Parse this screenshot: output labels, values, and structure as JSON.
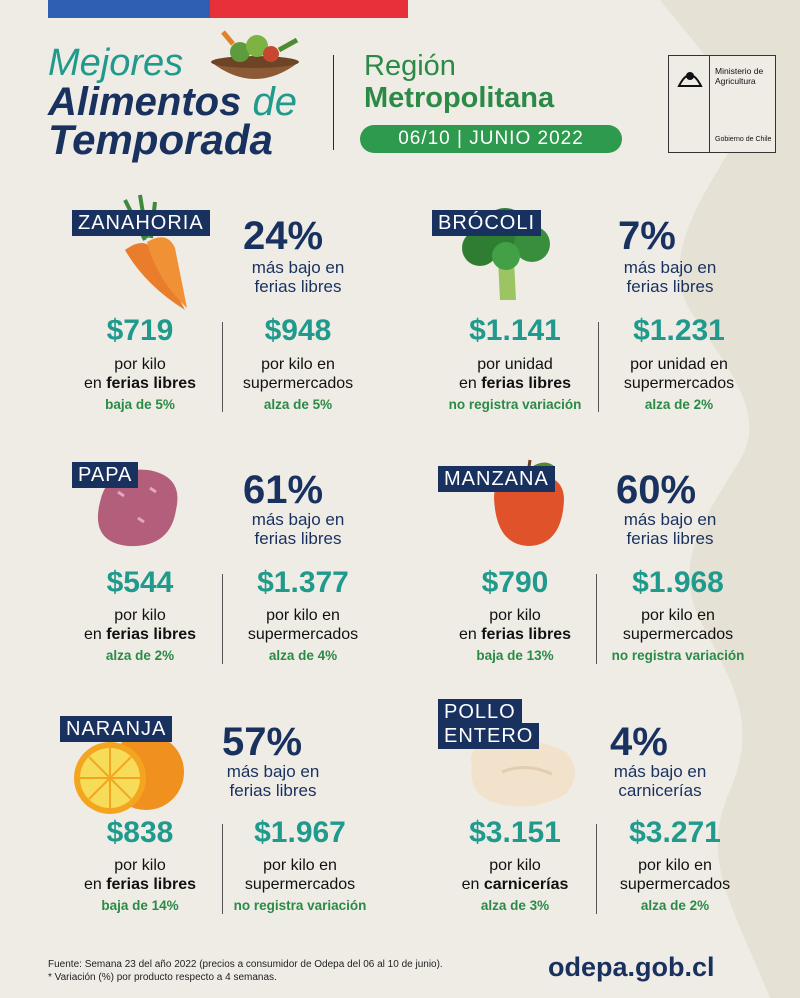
{
  "header": {
    "title_line1": "Mejores",
    "title_line2_main": "Alimentos",
    "title_line2_de": "de",
    "title_line3": "Temporada",
    "region_line1": "Región",
    "region_line2": "Metropolitana",
    "date_pill": "06/10 | JUNIO 2022",
    "ministry_name": "Ministerio de Agricultura",
    "gov_name": "Gobierno de Chile"
  },
  "products": {
    "zanahoria": {
      "name": "ZANAHORIA",
      "pct": "24%",
      "pct_desc1": "más bajo en",
      "pct_desc2": "ferias libres",
      "p1": "$719",
      "p1_u1": "por kilo",
      "p1_u2a": "en ",
      "p1_u2b": "ferias libres",
      "p1_change": "baja de 5%",
      "p2": "$948",
      "p2_u1": "por kilo en",
      "p2_u2": "supermercados",
      "p2_change": "alza de 5%"
    },
    "brocoli": {
      "name": "BRÓCOLI",
      "pct": "7%",
      "pct_desc1": "más bajo en",
      "pct_desc2": "ferias libres",
      "p1": "$1.141",
      "p1_u1": "por unidad",
      "p1_u2a": "en ",
      "p1_u2b": "ferias libres",
      "p1_change": "no registra variación",
      "p2": "$1.231",
      "p2_u1": "por unidad en",
      "p2_u2": "supermercados",
      "p2_change": "alza de 2%"
    },
    "papa": {
      "name": "PAPA",
      "pct": "61%",
      "pct_desc1": "más bajo en",
      "pct_desc2": "ferias libres",
      "p1": "$544",
      "p1_u1": "por kilo",
      "p1_u2a": "en ",
      "p1_u2b": "ferias libres",
      "p1_change": "alza de 2%",
      "p2": "$1.377",
      "p2_u1": "por kilo en",
      "p2_u2": "supermercados",
      "p2_change": "alza de 4%"
    },
    "manzana": {
      "name": "MANZANA",
      "pct": "60%",
      "pct_desc1": "más bajo en",
      "pct_desc2": "ferias libres",
      "p1": "$790",
      "p1_u1": "por kilo",
      "p1_u2a": "en ",
      "p1_u2b": "ferias libres",
      "p1_change": "baja de 13%",
      "p2": "$1.968",
      "p2_u1": "por kilo en",
      "p2_u2": "supermercados",
      "p2_change": "no registra variación"
    },
    "naranja": {
      "name": "NARANJA",
      "pct": "57%",
      "pct_desc1": "más bajo en",
      "pct_desc2": "ferias libres",
      "p1": "$838",
      "p1_u1": "por kilo",
      "p1_u2a": "en ",
      "p1_u2b": "ferias libres",
      "p1_change": "baja de 14%",
      "p2": "$1.967",
      "p2_u1": "por kilo en",
      "p2_u2": "supermercados",
      "p2_change": "no registra variación"
    },
    "pollo": {
      "name1": "POLLO",
      "name2": "ENTERO",
      "pct": "4%",
      "pct_desc1": "más bajo en",
      "pct_desc2": "carnicerías",
      "p1": "$3.151",
      "p1_u1": "por kilo",
      "p1_u2a": "en ",
      "p1_u2b": "carnicerías",
      "p1_change": "alza de 3%",
      "p2": "$3.271",
      "p2_u1": "por kilo en",
      "p2_u2": "supermercados",
      "p2_change": "alza de 2%"
    }
  },
  "footer": {
    "source": "Fuente: Semana 23 del año 2022 (precios a consumidor de Odepa del 06 al 10 de junio).",
    "note": "* Variación (%) por producto respecto a 4 semanas.",
    "website": "odepa.gob.cl"
  },
  "colors": {
    "navy": "#18315f",
    "teal": "#1f9a8c",
    "green": "#2a8a46"
  }
}
